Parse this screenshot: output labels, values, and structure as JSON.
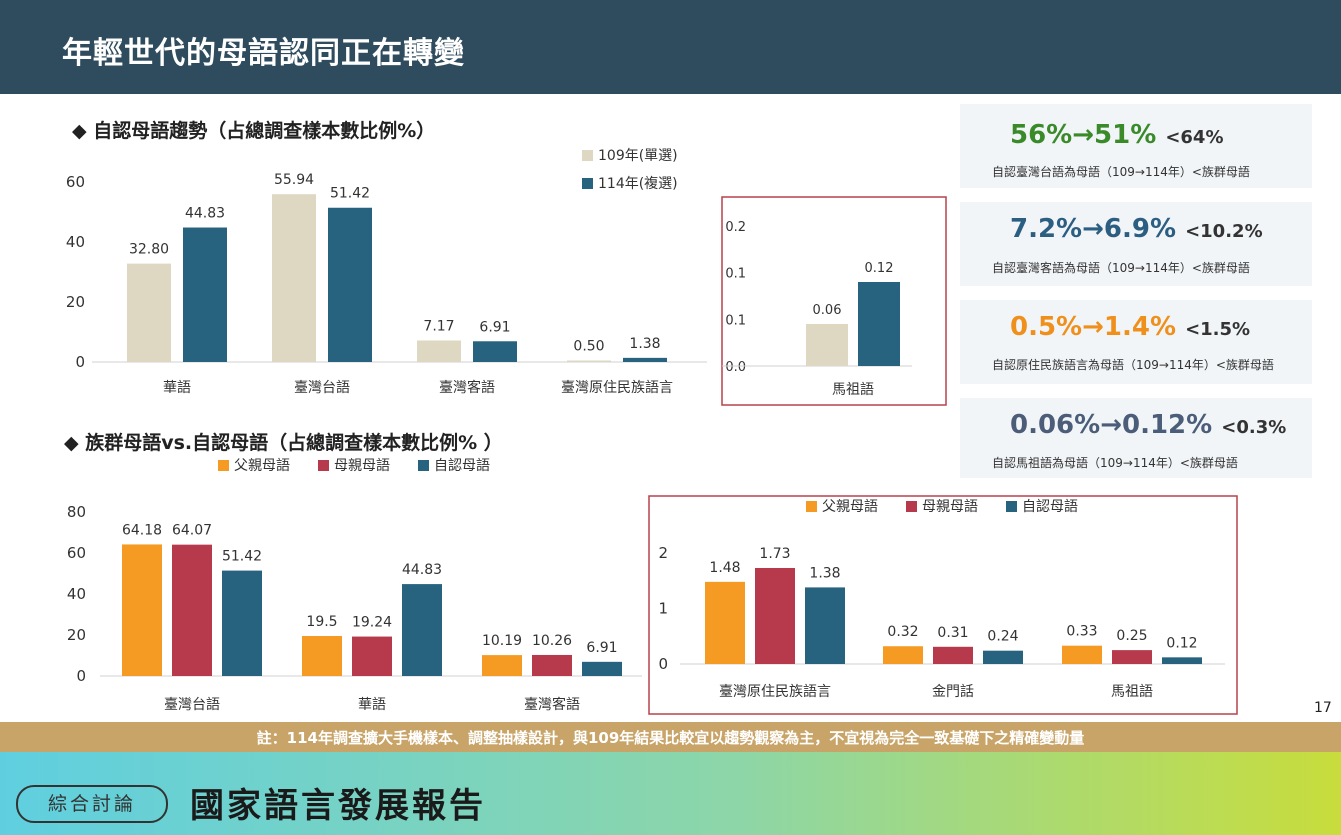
{
  "header": {
    "title": "年輕世代的母語認同正在轉變"
  },
  "section1": {
    "title": "◆ 自認母語趨勢（占總調查樣本數比例%）"
  },
  "section2": {
    "title": "◆ 族群母語vs.自認母語（占總調查樣本數比例% ）"
  },
  "colors": {
    "y109": "#ded8c3",
    "y114": "#27627f",
    "father": "#f59a23",
    "mother": "#b63a4b",
    "self": "#27627f",
    "green": "#3a8a2a",
    "blue": "#2c5e82",
    "orange": "#f0901c",
    "slate": "#4b5d78",
    "box": "#b5424c"
  },
  "chart_data": [
    {
      "type": "bar",
      "categories": [
        "華語",
        "臺灣台語",
        "臺灣客語",
        "臺灣原住民族語言"
      ],
      "series": [
        {
          "name": "109年(單選)",
          "values": [
            32.8,
            55.94,
            7.17,
            0.5
          ]
        },
        {
          "name": "114年(複選)",
          "values": [
            44.83,
            51.42,
            6.91,
            1.38
          ]
        }
      ],
      "labels": [
        [
          "32.80",
          "55.94",
          "7.17",
          "0.50"
        ],
        [
          "44.83",
          "51.42",
          "6.91",
          "1.38"
        ]
      ],
      "yticks": [
        "0",
        "20",
        "40",
        "60"
      ],
      "ylim": [
        0,
        60
      ],
      "legend": "top-right"
    },
    {
      "type": "bar",
      "categories": [
        "馬祖語"
      ],
      "series": [
        {
          "name": "109年(單選)",
          "values": [
            0.06
          ]
        },
        {
          "name": "114年(複選)",
          "values": [
            0.12
          ]
        }
      ],
      "labels": [
        [
          "0.06"
        ],
        [
          "0.12"
        ]
      ],
      "yticks": [
        "0.0",
        "0.1",
        "0.1",
        "0.2"
      ],
      "ylim": [
        0,
        0.2
      ]
    },
    {
      "type": "bar",
      "categories": [
        "臺灣台語",
        "華語",
        "臺灣客語"
      ],
      "series": [
        {
          "name": "父親母語",
          "values": [
            64.18,
            19.5,
            10.19
          ]
        },
        {
          "name": "母親母語",
          "values": [
            64.07,
            19.24,
            10.26
          ]
        },
        {
          "name": "自認母語",
          "values": [
            51.42,
            44.83,
            6.91
          ]
        }
      ],
      "labels": [
        [
          "64.18",
          "19.5",
          "10.19"
        ],
        [
          "64.07",
          "19.24",
          "10.26"
        ],
        [
          "51.42",
          "44.83",
          "6.91"
        ]
      ],
      "yticks": [
        "0",
        "20",
        "40",
        "60",
        "80"
      ],
      "ylim": [
        0,
        80
      ],
      "legend": "top"
    },
    {
      "type": "bar",
      "categories": [
        "臺灣原住民族語言",
        "金門話",
        "馬祖語"
      ],
      "series": [
        {
          "name": "父親母語",
          "values": [
            1.48,
            0.32,
            0.33
          ]
        },
        {
          "name": "母親母語",
          "values": [
            1.73,
            0.31,
            0.25
          ]
        },
        {
          "name": "自認母語",
          "values": [
            1.38,
            0.24,
            0.12
          ]
        }
      ],
      "labels": [
        [
          "1.48",
          "0.32",
          "0.33"
        ],
        [
          "1.73",
          "0.31",
          "0.25"
        ],
        [
          "1.38",
          "0.24",
          "0.12"
        ]
      ],
      "yticks": [
        "0",
        "1",
        "2"
      ],
      "ylim": [
        0,
        2
      ],
      "legend": "top"
    }
  ],
  "stats": [
    {
      "main": "56%→51%",
      "cmp": "<64%",
      "sub": "自認臺灣台語為母語（109→114年）<族群母語"
    },
    {
      "main": "7.2%→6.9%",
      "cmp": "<10.2%",
      "sub": "自認臺灣客語為母語（109→114年）<族群母語"
    },
    {
      "main": "0.5%→1.4%",
      "cmp": "<1.5%",
      "sub": "自認原住民族語言為母語（109→114年）<族群母語"
    },
    {
      "main": "0.06%→0.12%",
      "cmp": "<0.3%",
      "sub": "自認馬祖語為母語（109→114年）<族群母語"
    }
  ],
  "note": "註：114年調查擴大手機樣本、調整抽樣設計，與109年結果比較宜以趨勢觀察為主，不宜視為完全一致基礎下之精確變動量",
  "page_number": "17",
  "footer": {
    "badge": "綜合討論",
    "title": "國家語言發展報告"
  }
}
